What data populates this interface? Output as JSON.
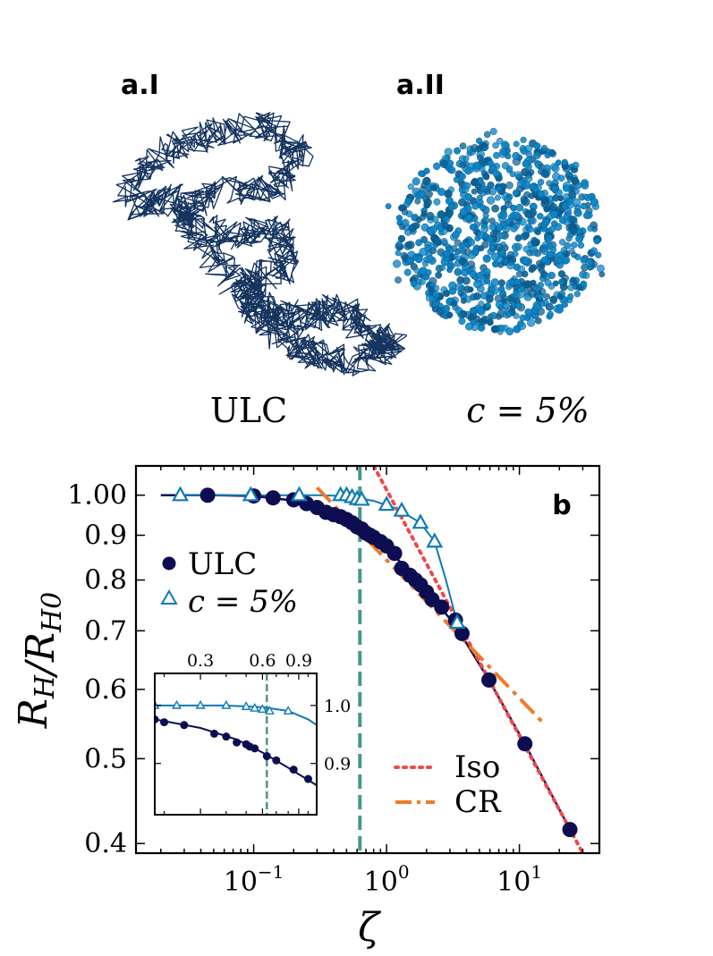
{
  "panels": {
    "a1": {
      "label": "a.I",
      "caption": "ULC"
    },
    "a2": {
      "label": "a.II",
      "caption": "c = 5%"
    },
    "b": {
      "label": "b"
    }
  },
  "colors": {
    "ulc": "#0d0d52",
    "c5": "#0e7bb5",
    "iso": "#ef4a4a",
    "cr": "#f07a2a",
    "vline": "#4a978a",
    "ulc_render": "#14335e",
    "c5_render": "#0a84c6"
  },
  "chart_data": [
    {
      "type": "scatter",
      "xlabel": "ζ",
      "ylabel": "R_H/R_H0",
      "xscale": "log",
      "yscale": "log",
      "xlim": [
        0.013,
        40
      ],
      "ylim": [
        0.39,
        1.08
      ],
      "x_ticks": [
        {
          "value": 0.1,
          "base": "10",
          "exp": "−1"
        },
        {
          "value": 1,
          "base": "10",
          "exp": "0"
        },
        {
          "value": 10,
          "base": "10",
          "exp": "1"
        }
      ],
      "y_ticks": [
        {
          "value": 1.0,
          "label": "1.00"
        },
        {
          "value": 0.9,
          "label": "0.9"
        },
        {
          "value": 0.8,
          "label": "0.8"
        },
        {
          "value": 0.7,
          "label": "0.7"
        },
        {
          "value": 0.6,
          "label": "0.6"
        },
        {
          "value": 0.5,
          "label": "0.5"
        },
        {
          "value": 0.4,
          "label": "0.4"
        }
      ],
      "vline_x": 0.63,
      "series": [
        {
          "name": "ULC",
          "marker": "circle",
          "x": [
            0.045,
            0.1,
            0.14,
            0.2,
            0.25,
            0.3,
            0.35,
            0.4,
            0.45,
            0.5,
            0.55,
            0.6,
            0.65,
            0.7,
            0.75,
            0.8,
            0.9,
            1.0,
            1.15,
            1.3,
            1.5,
            1.65,
            1.8,
            2.0,
            2.2,
            2.6,
            3.3,
            3.7,
            5.9,
            11,
            24
          ],
          "y": [
            1.0,
            0.998,
            0.993,
            0.988,
            0.978,
            0.968,
            0.956,
            0.95,
            0.945,
            0.938,
            0.93,
            0.92,
            0.915,
            0.905,
            0.9,
            0.895,
            0.885,
            0.875,
            0.858,
            0.825,
            0.81,
            0.8,
            0.79,
            0.775,
            0.76,
            0.745,
            0.72,
            0.695,
            0.615,
            0.52,
            0.415
          ]
        },
        {
          "name": "c = 5%",
          "marker": "triangle",
          "x": [
            0.028,
            0.095,
            0.22,
            0.45,
            0.5,
            0.55,
            0.6,
            0.65,
            1.0,
            1.3,
            1.8,
            2.3,
            3.4
          ],
          "y": [
            1.0,
            1.0,
            1.0,
            1.0,
            1.0,
            0.995,
            0.99,
            0.988,
            0.975,
            0.96,
            0.93,
            0.885,
            0.715
          ]
        }
      ],
      "fit_curves": [
        {
          "series": "ULC",
          "x": [
            0.02,
            0.05,
            0.1,
            0.2,
            0.3,
            0.45,
            0.63,
            1.0,
            1.5,
            2.2,
            3.3,
            5.9,
            11,
            24
          ],
          "y": [
            1.0,
            1.0,
            0.998,
            0.986,
            0.97,
            0.945,
            0.918,
            0.873,
            0.815,
            0.765,
            0.71,
            0.615,
            0.52,
            0.415
          ]
        },
        {
          "series": "c = 5%",
          "x": [
            0.028,
            0.1,
            0.3,
            0.5,
            0.8,
            1.2,
            1.8,
            2.3,
            2.8,
            3.4
          ],
          "y": [
            1.0,
            1.0,
            1.0,
            0.998,
            0.985,
            0.965,
            0.93,
            0.885,
            0.8,
            0.715
          ]
        }
      ],
      "reference_lines": [
        {
          "name": "Iso",
          "style": "dotted",
          "x": [
            0.8,
            30
          ],
          "y": [
            1.08,
            0.39
          ]
        },
        {
          "name": "CR",
          "style": "dashdot",
          "x": [
            0.3,
            15
          ],
          "y": [
            1.02,
            0.55
          ]
        }
      ],
      "legend": [
        {
          "label": "ULC",
          "marker": "circle"
        },
        {
          "label": "c = 5%",
          "marker": "triangle"
        },
        {
          "label": "Iso",
          "line": "dotted"
        },
        {
          "label": "CR",
          "line": "dashdot"
        }
      ],
      "legend_placement": "left and lower-right"
    },
    {
      "type": "scatter",
      "name": "inset",
      "xscale": "log",
      "yscale": "log",
      "xlim": [
        0.18,
        1.1
      ],
      "ylim": [
        0.82,
        1.06
      ],
      "x_ticks": [
        {
          "value": 0.3,
          "label": "0.3"
        },
        {
          "value": 0.6,
          "label": "0.6"
        },
        {
          "value": 0.9,
          "label": "0.9"
        }
      ],
      "y_ticks": [
        {
          "value": 1.0,
          "label": "1.0"
        },
        {
          "value": 0.9,
          "label": "0.9"
        }
      ],
      "vline_x": 0.63,
      "series": [
        {
          "name": "ULC",
          "marker": "circle",
          "x": [
            0.18,
            0.2,
            0.25,
            0.35,
            0.4,
            0.45,
            0.5,
            0.52,
            0.55,
            0.63,
            0.7,
            0.85,
            1.0
          ],
          "y": [
            0.975,
            0.97,
            0.965,
            0.95,
            0.945,
            0.935,
            0.932,
            0.928,
            0.925,
            0.912,
            0.905,
            0.89,
            0.875
          ]
        },
        {
          "name": "c = 5%",
          "marker": "triangle",
          "x": [
            0.18,
            0.23,
            0.3,
            0.4,
            0.5,
            0.55,
            0.6,
            0.65,
            0.8
          ],
          "y": [
            1.0,
            1.0,
            1.0,
            1.0,
            0.998,
            0.995,
            0.993,
            0.99,
            0.99
          ]
        }
      ],
      "fit_curves": [
        {
          "series": "ULC",
          "x": [
            0.18,
            0.3,
            0.45,
            0.6,
            0.8,
            1.1
          ],
          "y": [
            0.975,
            0.96,
            0.94,
            0.918,
            0.893,
            0.865
          ]
        },
        {
          "series": "c = 5%",
          "x": [
            0.18,
            0.4,
            0.6,
            0.8,
            1.0,
            1.1
          ],
          "y": [
            1.0,
            1.0,
            0.997,
            0.99,
            0.975,
            0.965
          ]
        }
      ]
    }
  ]
}
